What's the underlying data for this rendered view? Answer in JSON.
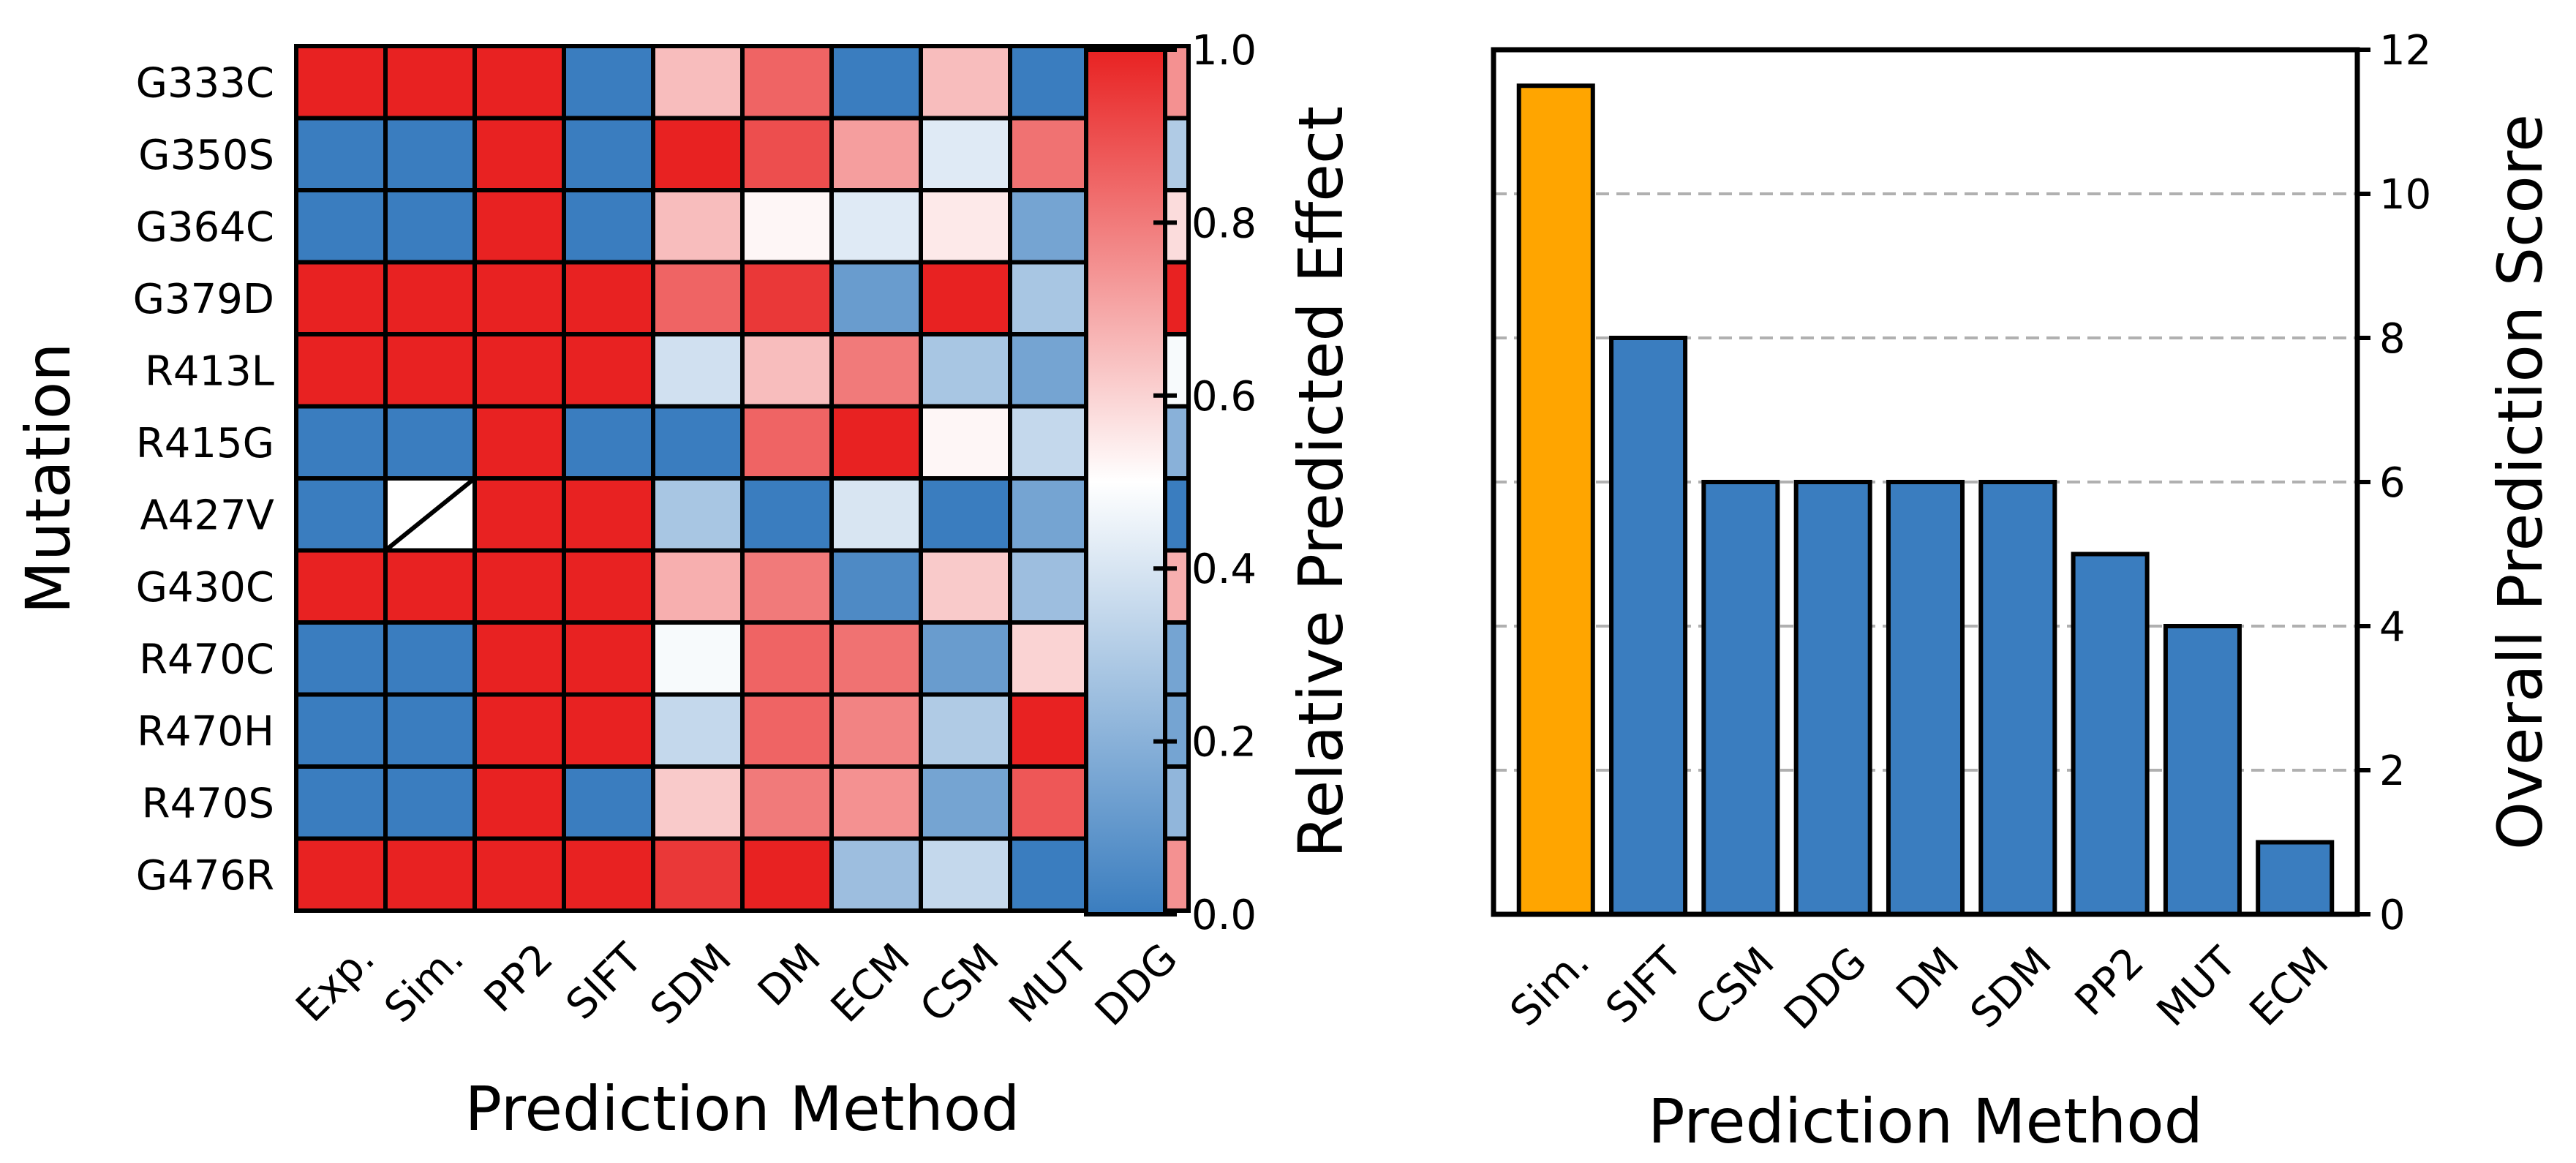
{
  "chart_data": [
    {
      "type": "heatmap",
      "xlabel": "Prediction Method",
      "ylabel": "Mutation",
      "columns": [
        "Exp.",
        "Sim.",
        "PP2",
        "SIFT",
        "SDM",
        "DM",
        "ECM",
        "CSM",
        "MUT",
        "DDG"
      ],
      "rows": [
        "G333C",
        "G350S",
        "G364C",
        "G379D",
        "R413L",
        "R415G",
        "A427V",
        "G430C",
        "R470C",
        "R470H",
        "R470S",
        "G476R"
      ],
      "values": [
        [
          1.0,
          1.0,
          1.0,
          0.0,
          0.65,
          0.85,
          0.0,
          0.65,
          0.0,
          0.75
        ],
        [
          0.0,
          0.0,
          1.0,
          0.0,
          1.0,
          0.9,
          0.72,
          0.42,
          0.82,
          0.3
        ],
        [
          0.0,
          0.0,
          1.0,
          0.0,
          0.65,
          0.52,
          0.42,
          0.55,
          0.15,
          0.58
        ],
        [
          1.0,
          1.0,
          1.0,
          1.0,
          0.85,
          0.95,
          0.12,
          1.0,
          0.28,
          1.0
        ],
        [
          1.0,
          1.0,
          1.0,
          1.0,
          0.38,
          0.65,
          0.8,
          0.28,
          0.15,
          0.48
        ],
        [
          0.0,
          0.0,
          1.0,
          0.0,
          0.0,
          0.85,
          1.0,
          0.52,
          0.35,
          0.2
        ],
        [
          0.0,
          null,
          1.0,
          1.0,
          0.28,
          0.0,
          0.4,
          0.0,
          0.15,
          0.0
        ],
        [
          1.0,
          1.0,
          1.0,
          1.0,
          0.68,
          0.8,
          0.05,
          0.62,
          0.25,
          0.68
        ],
        [
          0.0,
          0.0,
          1.0,
          1.0,
          0.48,
          0.85,
          0.82,
          0.12,
          0.6,
          0.15
        ],
        [
          0.0,
          0.0,
          1.0,
          1.0,
          0.35,
          0.85,
          0.78,
          0.3,
          1.0,
          0.15
        ],
        [
          0.0,
          0.0,
          1.0,
          0.0,
          0.62,
          0.8,
          0.75,
          0.15,
          0.88,
          0.22
        ],
        [
          1.0,
          1.0,
          1.0,
          1.0,
          0.95,
          1.0,
          0.25,
          0.35,
          0.0,
          0.75
        ]
      ],
      "missing_cell": {
        "row": "A427V",
        "column": "Sim."
      },
      "colorbar": {
        "label": "Relative Predicted Effect",
        "range": [
          0.0,
          1.0
        ],
        "ticks": [
          "0.0",
          "0.2",
          "0.4",
          "0.6",
          "0.8",
          "1.0"
        ],
        "colors": [
          "#3a7dbf",
          "#ffffff",
          "#e82222"
        ]
      }
    },
    {
      "type": "bar",
      "xlabel": "Prediction Method",
      "ylabel": "Overall Prediction Score",
      "categories": [
        "Sim.",
        "SIFT",
        "CSM",
        "DDG",
        "DM",
        "SDM",
        "PP2",
        "MUT",
        "ECM"
      ],
      "values": [
        11.5,
        8,
        6,
        6,
        6,
        6,
        5,
        4,
        1
      ],
      "colors": [
        "#ffa500",
        "#3a7dbf",
        "#3a7dbf",
        "#3a7dbf",
        "#3a7dbf",
        "#3a7dbf",
        "#3a7dbf",
        "#3a7dbf",
        "#3a7dbf"
      ],
      "ylim": [
        0,
        12
      ],
      "yticks": [
        "0",
        "2",
        "4",
        "6",
        "8",
        "10",
        "12"
      ],
      "grid": "horizontal dashed",
      "yaxis_side": "right"
    }
  ]
}
